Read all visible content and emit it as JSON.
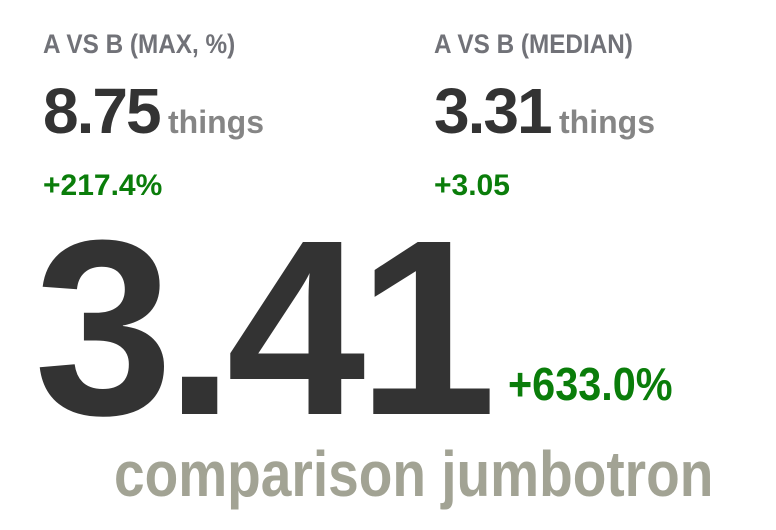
{
  "stats": [
    {
      "label": "A VS B (MAX, %)",
      "value": "8.75",
      "unit": "things",
      "delta": "+217.4%"
    },
    {
      "label": "A VS B (MEDIAN)",
      "value": "3.31",
      "unit": "things",
      "delta": "+3.05"
    }
  ],
  "jumbotron": {
    "value": "3.41",
    "delta": "+633.0%",
    "caption": "comparison jumbotron"
  },
  "colors": {
    "value": "#333333",
    "label": "#717278",
    "unit": "#858585",
    "positive_delta": "#0a7d0a",
    "caption": "#a2a394",
    "background": "#ffffff"
  }
}
